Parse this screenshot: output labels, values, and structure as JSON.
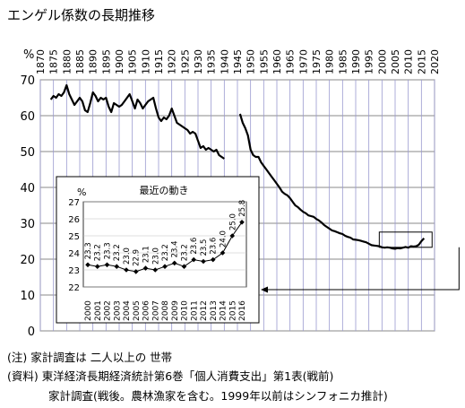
{
  "title": "エンゲル係数の長期推移",
  "notes": {
    "note1": "(注) 家計調査は 二人以上の 世帯",
    "note2": "(資料) 東洋経済長期経済統計第6巻「個人消費支出」第1表(戦前)",
    "note3": "家計調査(戦後。農林漁家を含む。1999年以前はシンフォニカ推計)"
  },
  "chart_data": {
    "type": "line",
    "main": {
      "ylabel": "%",
      "xlim": [
        1870,
        2020
      ],
      "ylim": [
        0,
        70
      ],
      "yticks": [
        0,
        10,
        20,
        30,
        40,
        50,
        60,
        70
      ],
      "xticks": [
        1870,
        1875,
        1880,
        1885,
        1890,
        1895,
        1900,
        1905,
        1910,
        1915,
        1920,
        1925,
        1930,
        1935,
        1940,
        1945,
        1950,
        1955,
        1960,
        1965,
        1970,
        1975,
        1980,
        1985,
        1990,
        1995,
        2000,
        2005,
        2010,
        2015,
        2020
      ],
      "grid": true,
      "prewar": {
        "x": [
          1874,
          1875,
          1876,
          1877,
          1878,
          1879,
          1880,
          1881,
          1882,
          1883,
          1884,
          1885,
          1886,
          1887,
          1888,
          1889,
          1890,
          1891,
          1892,
          1893,
          1894,
          1895,
          1896,
          1897,
          1898,
          1899,
          1900,
          1901,
          1902,
          1903,
          1904,
          1905,
          1906,
          1907,
          1908,
          1909,
          1910,
          1911,
          1912,
          1913,
          1914,
          1915,
          1916,
          1917,
          1918,
          1919,
          1920,
          1921,
          1922,
          1923,
          1924,
          1925,
          1926,
          1927,
          1928,
          1929,
          1930,
          1931,
          1932,
          1933,
          1934,
          1935,
          1936,
          1937,
          1938,
          1939,
          1940
        ],
        "y": [
          64.5,
          65.5,
          65,
          66,
          65.5,
          66.5,
          68.5,
          66,
          64.5,
          63,
          64,
          65,
          64,
          61.5,
          61,
          63.5,
          66.5,
          65.5,
          64,
          65,
          64.5,
          65,
          62.5,
          61,
          63.5,
          63,
          62.5,
          63,
          64,
          65,
          66,
          64,
          62,
          64.5,
          63.5,
          62,
          63,
          64,
          64.5,
          65,
          62,
          59.5,
          58.5,
          59.5,
          59,
          60,
          62,
          60,
          58,
          57.5,
          57,
          56.5,
          56,
          55,
          55.5,
          55,
          53,
          51,
          51.5,
          50.5,
          51,
          50.5,
          50,
          50.5,
          49,
          48.5,
          48
        ]
      },
      "postwar": {
        "x": [
          1946,
          1947,
          1948,
          1949,
          1950,
          1951,
          1952,
          1953,
          1954,
          1955,
          1956,
          1957,
          1958,
          1959,
          1960,
          1961,
          1962,
          1963,
          1964,
          1965,
          1966,
          1967,
          1968,
          1969,
          1970,
          1971,
          1972,
          1973,
          1974,
          1975,
          1976,
          1977,
          1978,
          1979,
          1980,
          1981,
          1982,
          1983,
          1984,
          1985,
          1986,
          1987,
          1988,
          1989,
          1990,
          1991,
          1992,
          1993,
          1994,
          1995,
          1996,
          1997,
          1998,
          1999,
          2000,
          2001,
          2002,
          2003,
          2004,
          2005,
          2006,
          2007,
          2008,
          2009,
          2010,
          2011,
          2012,
          2013,
          2014,
          2015,
          2016
        ],
        "y": [
          60.5,
          58,
          56.5,
          54.5,
          50.5,
          49,
          48.5,
          48.5,
          47,
          46,
          45,
          44,
          43,
          42,
          41,
          40,
          38.8,
          38.2,
          37.8,
          37,
          36,
          35,
          34.5,
          33.8,
          33.2,
          32.8,
          32.2,
          32,
          31.8,
          31.2,
          30.8,
          30.2,
          29.5,
          29,
          28.5,
          28,
          27.8,
          27.5,
          27.2,
          27,
          26.5,
          26.2,
          26,
          25.5,
          25.4,
          25.3,
          25.1,
          24.9,
          24.7,
          24.3,
          23.9,
          23.8,
          23.7,
          23.6,
          23.3,
          23.2,
          23.3,
          23.2,
          23.0,
          22.9,
          23.1,
          23.0,
          23.2,
          23.4,
          23.2,
          23.6,
          23.5,
          23.6,
          24.0,
          25.0,
          25.8
        ]
      }
    },
    "inset": {
      "title": "最近の動き",
      "ylabel": "%",
      "ylim": [
        22,
        27
      ],
      "yticks": [
        22,
        23,
        24,
        25,
        26,
        27
      ],
      "categories": [
        "2000",
        "2001",
        "2002",
        "2003",
        "2004",
        "2005",
        "2006",
        "2007",
        "2008",
        "2009",
        "2010",
        "2011",
        "2012",
        "2013",
        "2014",
        "2015",
        "2016"
      ],
      "values": [
        23.3,
        23.2,
        23.3,
        23.2,
        23.0,
        22.9,
        23.1,
        23.0,
        23.2,
        23.4,
        23.2,
        23.6,
        23.5,
        23.6,
        24.0,
        25.0,
        25.8
      ],
      "labels": [
        "23.3",
        "23.2",
        "23.3",
        "23.2",
        "23.0",
        "22.9",
        "23.1",
        "23.0",
        "23.2",
        "23.4",
        "23.2",
        "23.6",
        "23.5",
        "23.6",
        "24.0",
        "25.0",
        "25.8"
      ]
    }
  }
}
